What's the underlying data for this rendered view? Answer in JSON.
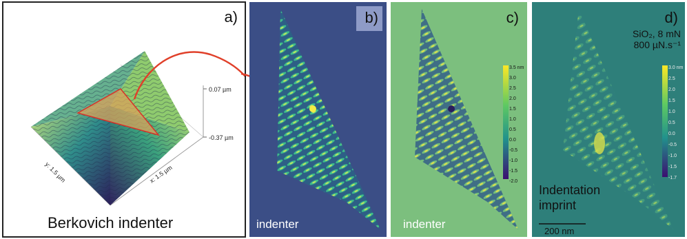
{
  "panel_a": {
    "label": "a)",
    "caption": "Berkovich indenter",
    "z_top": "0.07 µm",
    "z_bottom": "-0.37 µm",
    "axis_x": "x: 1.5 µm",
    "axis_y": "y: 1.5 µm"
  },
  "panel_b": {
    "label": "b)",
    "caption": "indenter"
  },
  "panel_c": {
    "label": "c)",
    "caption": "indenter",
    "colorbar_ticks": [
      "3.5 nm",
      "3.0",
      "2.5",
      "2.0",
      "1.5",
      "1.0",
      "0.5",
      "0.0",
      "-0.5",
      "-1.0",
      "-1.5",
      "-2.0"
    ]
  },
  "panel_d": {
    "label": "d)",
    "material": "SiO₂, 8 mN",
    "rate": "800 µN.s⁻¹",
    "caption_line1": "Indentation",
    "caption_line2": "imprint",
    "scalebar": "200 nm",
    "colorbar_ticks": [
      "3.0 nm",
      "2.5",
      "2.0",
      "1.5",
      "1.0",
      "0.5",
      "0.0",
      "-0.5",
      "-1.0",
      "-1.5",
      "-1.7"
    ]
  },
  "colors": {
    "arrow": "#e0402a",
    "triangle_fill": "#d9a15a",
    "panel_b_bg": "#3b4e86",
    "panel_c_bg": "#7cbf7e",
    "panel_d_bg": "#2e7f7a"
  }
}
